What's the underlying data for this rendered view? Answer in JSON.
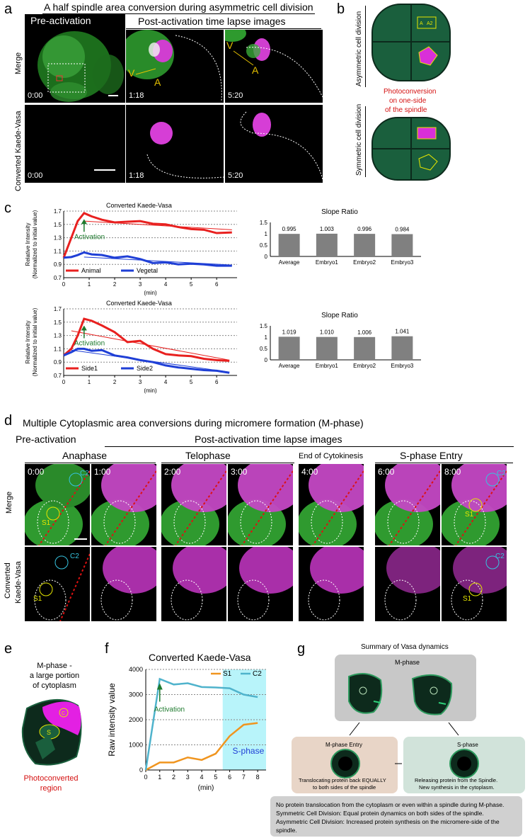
{
  "panel_a": {
    "label": "a",
    "title": "A half spindle area conversion during asymmetric cell division",
    "pre_label": "Pre-activation",
    "post_label": "Post-activation time lapse images",
    "row_merge": "Merge",
    "row_converted": "Converted Kaede-Vasa",
    "times": [
      "0:00",
      "1:18",
      "5:20"
    ],
    "marker_v": "V",
    "marker_a": "A"
  },
  "panel_b": {
    "label": "b",
    "asym": "Asymmetric cell division",
    "sym": "Symmetric cell division",
    "photo_line1": "Photoconversion",
    "photo_line2": "on one-side",
    "photo_line3": "of the spindle",
    "tag1": "A",
    "tag2": "A2"
  },
  "panel_c": {
    "label": "c",
    "ylabel1": "Relative Intensity",
    "ylabel2": "(Normalized to initial value)",
    "xlabel": "(min)",
    "activation": "Activation",
    "top": {
      "title": "Converted Kaede-Vasa",
      "legend": [
        "Animal",
        "Vegetal"
      ]
    },
    "bottom": {
      "title": "Converted Kaede-Vasa",
      "legend": [
        "Side1",
        "Side2"
      ]
    },
    "colors": {
      "red": "#e8201f",
      "blue": "#1f3fd6",
      "green": "#1e7a2e",
      "bar": "#808080"
    }
  },
  "chart_data": [
    {
      "type": "line",
      "title": "Converted Kaede-Vasa",
      "xlabel": "(min)",
      "ylabel": "Relative Intensity (Normalized to initial value)",
      "xlim": [
        0,
        6.8
      ],
      "ylim": [
        0.7,
        1.7
      ],
      "xticks": [
        0,
        1,
        2,
        3,
        4,
        5,
        6
      ],
      "yticks": [
        0.7,
        0.9,
        1.1,
        1.3,
        1.5,
        1.7
      ],
      "annotation": "Activation",
      "series": [
        {
          "name": "Animal",
          "x": [
            0,
            0.3,
            0.55,
            0.8,
            1.1,
            1.5,
            2,
            2.5,
            3,
            3.5,
            4,
            4.5,
            5,
            5.5,
            6,
            6.6
          ],
          "y": [
            1.0,
            1.3,
            1.55,
            1.67,
            1.62,
            1.57,
            1.53,
            1.54,
            1.55,
            1.51,
            1.5,
            1.46,
            1.43,
            1.42,
            1.37,
            1.38
          ]
        },
        {
          "name": "Vegetal",
          "x": [
            0,
            0.3,
            0.55,
            0.8,
            1.1,
            1.5,
            2,
            2.5,
            3,
            3.5,
            4,
            4.5,
            5,
            5.5,
            6,
            6.6
          ],
          "y": [
            1.0,
            1.01,
            1.04,
            1.08,
            1.05,
            1.04,
            1.0,
            1.02,
            0.98,
            0.92,
            0.93,
            0.9,
            0.91,
            0.9,
            0.88,
            0.88
          ]
        }
      ],
      "trendlines": [
        {
          "series": "Animal",
          "from": [
            0.8,
            1.55
          ],
          "to": [
            6.6,
            1.42
          ]
        },
        {
          "series": "Vegetal",
          "from": [
            0.8,
            1.01
          ],
          "to": [
            6.6,
            0.89
          ]
        }
      ]
    },
    {
      "type": "bar",
      "title": "Slope Ratio",
      "categories": [
        "Average",
        "Embryo1",
        "Embryo2",
        "Embryo3"
      ],
      "values": [
        0.995,
        1.003,
        0.996,
        0.984
      ],
      "labels": [
        "0.995",
        "1.003",
        "0.996",
        "0.984"
      ],
      "ylim": [
        0,
        1.5
      ],
      "yticks": [
        0,
        0.5,
        1,
        1.5
      ]
    },
    {
      "type": "line",
      "title": "Converted Kaede-Vasa",
      "xlabel": "(min)",
      "ylabel": "Relative Intensity (Normalized to initial value)",
      "xlim": [
        0,
        6.8
      ],
      "ylim": [
        0.7,
        1.7
      ],
      "xticks": [
        0,
        1,
        2,
        3,
        4,
        5,
        6
      ],
      "yticks": [
        0.7,
        0.9,
        1.1,
        1.3,
        1.5,
        1.7
      ],
      "annotation": "Activation",
      "series": [
        {
          "name": "Side1",
          "x": [
            0,
            0.3,
            0.55,
            0.8,
            1.1,
            1.5,
            2,
            2.5,
            3,
            3.5,
            4,
            4.5,
            5,
            5.5,
            6,
            6.5
          ],
          "y": [
            1.0,
            1.1,
            1.3,
            1.55,
            1.52,
            1.45,
            1.35,
            1.2,
            1.22,
            1.1,
            1.02,
            1.0,
            0.99,
            0.95,
            0.93,
            0.92
          ]
        },
        {
          "name": "Side2",
          "x": [
            0,
            0.3,
            0.55,
            0.8,
            1.1,
            1.5,
            2,
            2.5,
            3,
            3.5,
            4,
            4.5,
            5,
            5.5,
            6,
            6.5
          ],
          "y": [
            1.0,
            1.05,
            1.1,
            1.1,
            1.07,
            1.08,
            1.0,
            0.97,
            0.93,
            0.9,
            0.85,
            0.82,
            0.8,
            0.78,
            0.77,
            0.74
          ]
        }
      ],
      "trendlines": [
        {
          "series": "Side1",
          "from": [
            0.3,
            1.37
          ],
          "to": [
            6.5,
            0.93
          ]
        },
        {
          "series": "Side2",
          "from": [
            0.3,
            1.08
          ],
          "to": [
            6.5,
            0.75
          ]
        }
      ]
    },
    {
      "type": "bar",
      "title": "Slope Ratio",
      "categories": [
        "Average",
        "Embryo1",
        "Embryo2",
        "Embryo3"
      ],
      "values": [
        1.019,
        1.01,
        1.006,
        1.041
      ],
      "labels": [
        "1.019",
        "1.010",
        "1.006",
        "1.041"
      ],
      "ylim": [
        0,
        1.5
      ],
      "yticks": [
        0,
        0.5,
        1,
        1.5
      ]
    },
    {
      "type": "line",
      "title": "Converted Kaede-Vasa",
      "xlabel": "(min)",
      "ylabel": "Raw intensity value",
      "xlim": [
        0,
        8.6
      ],
      "ylim": [
        0,
        4000
      ],
      "xticks": [
        0,
        1,
        2,
        3,
        4,
        5,
        6,
        7,
        8
      ],
      "yticks": [
        0,
        1000,
        2000,
        3000,
        4000
      ],
      "annotation": "Activation",
      "shaded_region": {
        "label": "S-phase",
        "from": 5.5,
        "to": 8.6
      },
      "series": [
        {
          "name": "S1",
          "x": [
            0,
            1,
            2,
            3,
            4,
            5,
            6,
            7,
            8
          ],
          "y": [
            0,
            300,
            300,
            500,
            400,
            650,
            1350,
            1800,
            1870
          ]
        },
        {
          "name": "C2",
          "x": [
            0,
            1,
            2,
            3,
            4,
            5,
            6,
            7,
            8
          ],
          "y": [
            0,
            3620,
            3400,
            3450,
            3300,
            3280,
            3250,
            3000,
            2900
          ]
        }
      ]
    }
  ],
  "panel_d": {
    "label": "d",
    "title": "Multiple Cytoplasmic area conversions during micromere formation (M-phase)",
    "pre_label": "Pre-activation",
    "post_label": "Post-activation time lapse images",
    "stages": [
      "Anaphase",
      "Telophase",
      "End of Cytokinesis",
      "S-phase Entry"
    ],
    "times": [
      "0:00",
      "1:00",
      "2:00",
      "3:00",
      "4:00",
      "6:00",
      "8:00"
    ],
    "row_merge": "Merge",
    "row_converted_1": "Converted",
    "row_converted_2": "Kaede-Vasa",
    "s1": "S1",
    "c2": "C2"
  },
  "panel_e": {
    "label": "e",
    "line1": "M-phase -",
    "line2": "a large portion",
    "line3": "of cytoplasm",
    "c": "C",
    "s": "S",
    "region1": "Photoconverted",
    "region2": "region"
  },
  "panel_f": {
    "label": "f",
    "title": "Converted Kaede-Vasa",
    "ylabel": "Raw intensity value",
    "xlabel": "(min)",
    "activation": "Activation",
    "s_phase": "S-phase",
    "legend": [
      "S1",
      "C2"
    ],
    "colors": {
      "s1": "#f0951f",
      "c2": "#4fb3cc",
      "shade": "#b8f4fa"
    }
  },
  "panel_g": {
    "label": "g",
    "title": "Summary of  Vasa dynamics",
    "m_phase": "M-phase",
    "m_entry": "M-phase Entry",
    "s_phase": "S-phase",
    "entry_caption1": "Translocating protein back EQUALLY",
    "entry_caption2": "to both sides of the spindle",
    "s_caption1": "Releasing protein from the Spindle.",
    "s_caption2": "New synthesis in the cytoplasm.",
    "notes": [
      "No protein translocation from the cytoplasm or even within a spindle during M-phase.",
      "Symmetric Cell Division: Equal protein dynamics on both sides of the spindle.",
      "Asymmetric Cell Division: Increased protein synthesis on the micromere-side of the spindle."
    ]
  }
}
